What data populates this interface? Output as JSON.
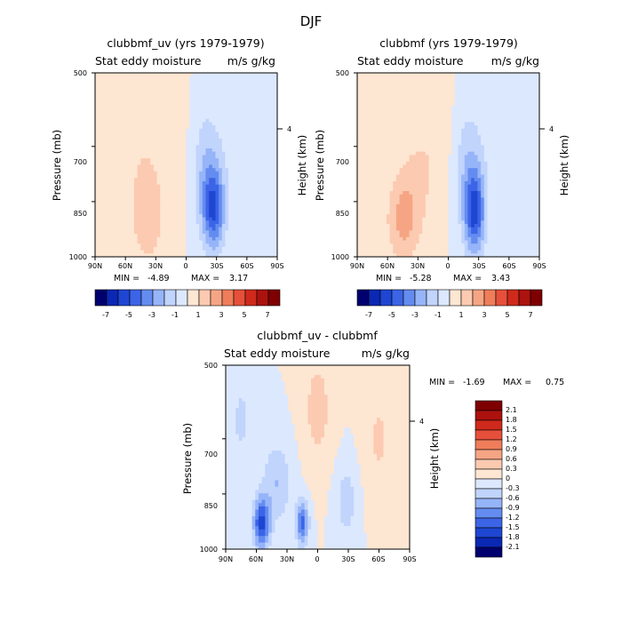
{
  "page_title": "DJF",
  "colors": {
    "cool": [
      "#00006e",
      "#0a28b4",
      "#1e46d2",
      "#3c64e6",
      "#648cf0",
      "#96b4f8",
      "#c0d4fc",
      "#dce8fe"
    ],
    "warm": [
      "#fde6d2",
      "#fbcab0",
      "#f6a584",
      "#f07d5a",
      "#e6503a",
      "#cf2a1c",
      "#ac120e",
      "#7e0000"
    ]
  },
  "chart_data": [
    {
      "type": "heatmap",
      "title": "clubbmf_uv (yrs 1979-1979)",
      "left_label": "Stat eddy moisture",
      "right_label": "m/s g/kg",
      "ylabel": "Pressure (mb)",
      "ylabel_right": "Height (km)",
      "x_ticks": [
        "90N",
        "60N",
        "30N",
        "0",
        "30S",
        "60S",
        "90S"
      ],
      "xlim": [
        90,
        -90
      ],
      "y_ticks": [
        "500",
        "700",
        "850",
        "1000"
      ],
      "y_tick_values": [
        500,
        700,
        850,
        1000
      ],
      "ylim": [
        500,
        1000
      ],
      "y_right_ticks": [
        "4"
      ],
      "y_right_tick_values": [
        4
      ],
      "min_label": "MIN =",
      "min_value": "-4.89",
      "max_label": "MAX =",
      "max_value": "3.17",
      "colorbar_levels": [
        "-7",
        "-5",
        "-3",
        "-1",
        "1",
        "3",
        "5",
        "7"
      ],
      "colorbar_orientation": "horizontal",
      "features": [
        {
          "lat": -27,
          "p": 870,
          "amp": -4.6,
          "slat": 11,
          "sp": 110
        },
        {
          "lat": -20,
          "p": 760,
          "amp": -1.6,
          "slat": 14,
          "sp": 160
        },
        {
          "lat": 38,
          "p": 890,
          "amp": 1.7,
          "slat": 17,
          "sp": 140
        },
        {
          "lat": 45,
          "p": 700,
          "amp": 0.6,
          "slat": 22,
          "sp": 150
        },
        {
          "lat": 10,
          "p": 650,
          "amp": 0.5,
          "slat": 12,
          "sp": 200
        },
        {
          "lat": -55,
          "p": 650,
          "amp": -0.6,
          "slat": 30,
          "sp": 250
        }
      ],
      "levels": [
        -7,
        -6,
        -5,
        -4,
        -3,
        -2,
        -1,
        0,
        1,
        2,
        3,
        4,
        5,
        6,
        7
      ]
    },
    {
      "type": "heatmap",
      "title": "clubbmf (yrs 1979-1979)",
      "left_label": "Stat eddy moisture",
      "right_label": "m/s g/kg",
      "ylabel": "Pressure (mb)",
      "ylabel_right": "Height (km)",
      "x_ticks": [
        "90N",
        "60N",
        "30N",
        "0",
        "30S",
        "60S",
        "90S"
      ],
      "xlim": [
        90,
        -90
      ],
      "y_ticks": [
        "500",
        "700",
        "850",
        "1000"
      ],
      "y_tick_values": [
        500,
        700,
        850,
        1000
      ],
      "ylim": [
        500,
        1000
      ],
      "y_right_ticks": [
        "4"
      ],
      "y_right_tick_values": [
        4
      ],
      "min_label": "MIN =",
      "min_value": "-5.28",
      "max_label": "MAX =",
      "max_value": "3.43",
      "colorbar_levels": [
        "-7",
        "-5",
        "-3",
        "-1",
        "1",
        "3",
        "5",
        "7"
      ],
      "colorbar_orientation": "horizontal",
      "features": [
        {
          "lat": -26,
          "p": 880,
          "amp": -5.0,
          "slat": 10,
          "sp": 110
        },
        {
          "lat": -20,
          "p": 760,
          "amp": -1.7,
          "slat": 14,
          "sp": 160
        },
        {
          "lat": 45,
          "p": 900,
          "amp": 2.2,
          "slat": 16,
          "sp": 120
        },
        {
          "lat": 30,
          "p": 780,
          "amp": 1.0,
          "slat": 18,
          "sp": 160
        },
        {
          "lat": 10,
          "p": 650,
          "amp": 0.6,
          "slat": 14,
          "sp": 200
        },
        {
          "lat": -60,
          "p": 650,
          "amp": -0.6,
          "slat": 30,
          "sp": 250
        }
      ],
      "levels": [
        -7,
        -6,
        -5,
        -4,
        -3,
        -2,
        -1,
        0,
        1,
        2,
        3,
        4,
        5,
        6,
        7
      ]
    },
    {
      "type": "heatmap",
      "title": "clubbmf_uv - clubbmf",
      "left_label": "Stat eddy moisture",
      "right_label": "m/s g/kg",
      "ylabel": "Pressure (mb)",
      "ylabel_right": "Height (km)",
      "x_ticks": [
        "90N",
        "60N",
        "30N",
        "0",
        "30S",
        "60S",
        "90S"
      ],
      "xlim": [
        90,
        -90
      ],
      "y_ticks": [
        "500",
        "700",
        "850",
        "1000"
      ],
      "y_tick_values": [
        500,
        700,
        850,
        1000
      ],
      "ylim": [
        500,
        1000
      ],
      "y_right_ticks": [
        "4"
      ],
      "y_right_tick_values": [
        4
      ],
      "min_label": "MIN =",
      "min_value": "-1.69",
      "max_label": "MAX =",
      "max_value": "0.75",
      "colorbar_levels": [
        "2.1",
        "1.8",
        "1.5",
        "1.2",
        "0.9",
        "0.6",
        "0.3",
        "0",
        "-0.3",
        "-0.6",
        "-0.9",
        "-1.2",
        "-1.5",
        "-1.8",
        "-2.1"
      ],
      "colorbar_orientation": "vertical",
      "features": [
        {
          "lat": 55,
          "p": 930,
          "amp": -1.6,
          "slat": 8,
          "sp": 70
        },
        {
          "lat": 15,
          "p": 930,
          "amp": -1.3,
          "slat": 6,
          "sp": 60
        },
        {
          "lat": 40,
          "p": 820,
          "amp": -0.6,
          "slat": 14,
          "sp": 110
        },
        {
          "lat": -28,
          "p": 870,
          "amp": -0.5,
          "slat": 10,
          "sp": 100
        },
        {
          "lat": 0,
          "p": 620,
          "amp": 0.45,
          "slat": 14,
          "sp": 150
        },
        {
          "lat": -60,
          "p": 700,
          "amp": 0.35,
          "slat": 14,
          "sp": 150
        },
        {
          "lat": 75,
          "p": 650,
          "amp": -0.35,
          "slat": 12,
          "sp": 150
        }
      ],
      "levels": [
        -2.1,
        -1.8,
        -1.5,
        -1.2,
        -0.9,
        -0.6,
        -0.3,
        0,
        0.3,
        0.6,
        0.9,
        1.2,
        1.5,
        1.8,
        2.1
      ]
    }
  ]
}
